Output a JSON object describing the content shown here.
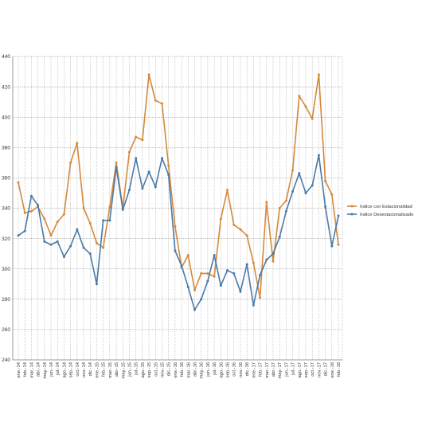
{
  "chart_data": {
    "type": "line",
    "categories": [
      "ene.-14",
      "feb.-14",
      "mar.-14",
      "abr.-14",
      "may.-14",
      "jun.-14",
      "jul.-14",
      "ago.-14",
      "sep.-14",
      "oct.-14",
      "nov.-14",
      "dic.-14",
      "ene.-15",
      "feb.-15",
      "mar.-15",
      "abr.-15",
      "may.-15",
      "jun.-15",
      "jul.-15",
      "ago.-15",
      "sep.-15",
      "oct.-15",
      "nov.-15",
      "dic.-15",
      "ene.-16",
      "feb.-16",
      "mar.-16",
      "abr.-16",
      "may.-16",
      "jun.-16",
      "jul.-16",
      "ago.-16",
      "sep.-16",
      "oct.-16",
      "nov.-16",
      "dic.-16",
      "ene.-17",
      "feb.-17",
      "mar.-17",
      "abr.-17",
      "may.-17",
      "jun.-17",
      "jul.-17",
      "ago.-17",
      "sep.-17",
      "oct.-17",
      "nov.-17",
      "dic.-17",
      "ene.-18",
      "feb.-18"
    ],
    "series": [
      {
        "name": "Indice con Estacionalidad",
        "color": "#d4893b",
        "values": [
          357,
          337,
          338,
          341,
          333,
          322,
          331,
          336,
          370,
          383,
          340,
          330,
          317,
          314,
          341,
          370,
          340,
          377,
          387,
          385,
          428,
          411,
          409,
          368,
          328,
          301,
          309,
          286,
          297,
          297,
          295,
          333,
          352,
          329,
          326,
          322,
          304,
          281,
          344,
          305,
          340,
          345,
          365,
          414,
          407,
          399,
          428,
          358,
          349,
          316
        ]
      },
      {
        "name": "Indice Desestacionalizado",
        "color": "#4a7aa8",
        "values": [
          322,
          325,
          348,
          342,
          318,
          316,
          318,
          308,
          315,
          326,
          314,
          310,
          290,
          332,
          332,
          367,
          339,
          352,
          373,
          353,
          364,
          354,
          373,
          362,
          312,
          302,
          288,
          273,
          280,
          292,
          309,
          289,
          299,
          297,
          285,
          303,
          276,
          296,
          306,
          310,
          321,
          338,
          351,
          363,
          350,
          355,
          375,
          341,
          315,
          335
        ]
      }
    ],
    "ylim": [
      240,
      440
    ],
    "yticks": [
      "440",
      "420",
      "400",
      "380",
      "360",
      "340",
      "320",
      "300",
      "280",
      "260",
      "240"
    ],
    "ytick_values": [
      440,
      420,
      400,
      380,
      360,
      340,
      320,
      300,
      280,
      260,
      240
    ],
    "grid": true,
    "legend": "right"
  }
}
